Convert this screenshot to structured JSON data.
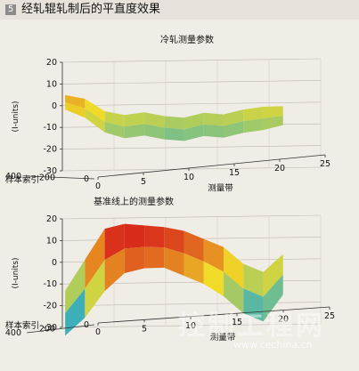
{
  "figure": {
    "badge": "5",
    "title": "经轧辊轧制后的平直度效果"
  },
  "watermark": {
    "text": "控制工程网",
    "url": "www.cechina.cn"
  },
  "colors": {
    "background": "#f0ece6",
    "header_background": "#e7e2db",
    "low": "#1f4fb0",
    "mid": "#3fb2b8",
    "high": "#d8261a"
  },
  "chart_data": [
    {
      "type": "surface3d",
      "title": "冷轧测量参数",
      "xlabel": "测量带",
      "ylabel": "样本索引",
      "zlabel": "(I-units)",
      "x_ticks": [
        "0",
        "5",
        "10",
        "15",
        "20",
        "25"
      ],
      "y_ticks": [
        "400",
        "200",
        "0"
      ],
      "z_ticks": [
        "20",
        "10",
        "0",
        "-10",
        "-20",
        "-30"
      ],
      "xlim": [
        0,
        25
      ],
      "ylim": [
        0,
        400
      ],
      "zlim": [
        -30,
        20
      ],
      "grid": true,
      "surface_profile": {
        "x": [
          1,
          3,
          5,
          7,
          9,
          11,
          13,
          15,
          17,
          19,
          21,
          23
        ],
        "z_mean": [
          6,
          3,
          -3,
          -6,
          -5,
          -7,
          -8,
          -6,
          -7,
          -5,
          -4,
          -3
        ],
        "z_min": [
          4,
          0,
          -7,
          -10,
          -9,
          -11,
          -12,
          -10,
          -11,
          -9,
          -8,
          -6
        ],
        "z_max": [
          8,
          6,
          0,
          -2,
          -1,
          -3,
          -4,
          -2,
          -3,
          -1,
          0,
          0
        ]
      }
    },
    {
      "type": "surface3d",
      "title": "基准线上的测量参数",
      "xlabel": "测量带",
      "ylabel": "样本索引",
      "zlabel": "(I-units)",
      "x_ticks": [
        "0",
        "5",
        "10",
        "15",
        "20",
        "25"
      ],
      "y_ticks": [
        "400",
        "200",
        "0"
      ],
      "z_ticks": [
        "20",
        "10",
        "0",
        "-10",
        "-20",
        "-30"
      ],
      "xlim": [
        0,
        25
      ],
      "ylim": [
        0,
        400
      ],
      "zlim": [
        -30,
        20
      ],
      "grid": true,
      "surface_profile": {
        "x": [
          1,
          3,
          5,
          7,
          9,
          11,
          13,
          15,
          17,
          19,
          21,
          23
        ],
        "z_mean": [
          -20,
          -8,
          8,
          15,
          14,
          13,
          10,
          6,
          0,
          -8,
          -14,
          -4
        ],
        "z_min": [
          -28,
          -20,
          -8,
          0,
          2,
          2,
          -2,
          -6,
          -12,
          -20,
          -24,
          -12
        ],
        "z_max": [
          -10,
          4,
          18,
          20,
          19,
          18,
          16,
          12,
          8,
          0,
          -4,
          4
        ]
      }
    }
  ]
}
